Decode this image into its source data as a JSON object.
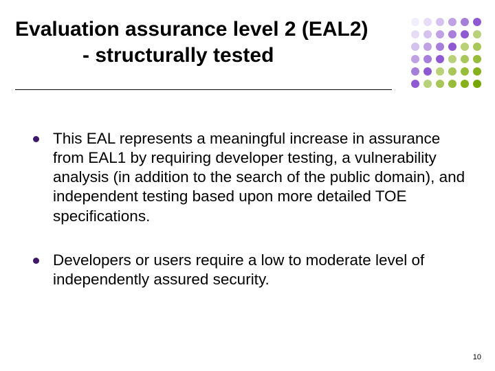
{
  "title": {
    "line1": "Evaluation assurance level 2 (EAL2)",
    "line2": "- structurally tested",
    "fontsize": 30,
    "color": "#000000",
    "underline_color": "#000000"
  },
  "bullets": [
    {
      "text": "This EAL represents a meaningful increase in assurance from EAL1 by requiring developer testing, a vulnerability analysis (in addition to the search of the public domain), and independent testing based upon more detailed TOE specifications."
    },
    {
      "text": "Developers or users require a low to moderate level of independently assured security."
    }
  ],
  "bullet_style": {
    "marker_color": "#3f1969",
    "text_color": "#000000",
    "fontsize": 22.5
  },
  "dot_grid": {
    "rows": 6,
    "cols": 6,
    "dot_size": 12,
    "colors": [
      [
        "#f3eefb",
        "#e7dcf6",
        "#d5c2ee",
        "#bfa1e4",
        "#a87edb",
        "#8f5ad1"
      ],
      [
        "#e7dcf6",
        "#d5c2ee",
        "#bfa1e4",
        "#a87edb",
        "#8f5ad1",
        "#b9d27a"
      ],
      [
        "#d5c2ee",
        "#bfa1e4",
        "#a87edb",
        "#8f5ad1",
        "#b9d27a",
        "#a8c75a"
      ],
      [
        "#bfa1e4",
        "#a87edb",
        "#8f5ad1",
        "#b9d27a",
        "#a8c75a",
        "#97bc3a"
      ],
      [
        "#a87edb",
        "#8f5ad1",
        "#b9d27a",
        "#a8c75a",
        "#97bc3a",
        "#86b11a"
      ],
      [
        "#8f5ad1",
        "#b9d27a",
        "#a8c75a",
        "#97bc3a",
        "#86b11a",
        "#75a600"
      ]
    ]
  },
  "page_number": "10",
  "background_color": "#ffffff"
}
